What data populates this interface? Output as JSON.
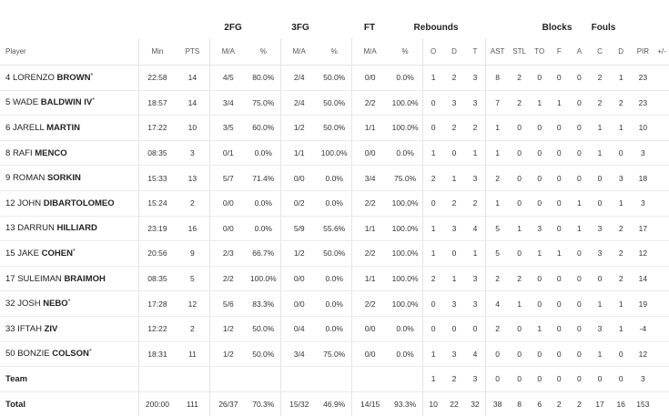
{
  "group_headers": {
    "fg2": "2FG",
    "fg3": "3FG",
    "ft": "FT",
    "rebounds": "Rebounds",
    "blocks": "Blocks",
    "fouls": "Fouls"
  },
  "columns": [
    "Player",
    "Min",
    "PTS",
    "M/A",
    "%",
    "M/A",
    "%",
    "M/A",
    "%",
    "O",
    "D",
    "T",
    "AST",
    "STL",
    "TO",
    "F",
    "A",
    "C",
    "D",
    "PIR",
    "+/-"
  ],
  "players": [
    {
      "no": "4",
      "first": "LORENZO",
      "last": "BROWN",
      "mark": "*",
      "stats": [
        "22:58",
        "14",
        "4/5",
        "80.0%",
        "2/4",
        "50.0%",
        "0/0",
        "0.0%",
        "1",
        "2",
        "3",
        "8",
        "2",
        "0",
        "0",
        "0",
        "2",
        "1",
        "23",
        ""
      ]
    },
    {
      "no": "5",
      "first": "WADE",
      "last": "BALDWIN IV",
      "mark": "*",
      "stats": [
        "18:57",
        "14",
        "3/4",
        "75.0%",
        "2/4",
        "50.0%",
        "2/2",
        "100.0%",
        "0",
        "3",
        "3",
        "7",
        "2",
        "1",
        "1",
        "0",
        "2",
        "2",
        "23",
        ""
      ]
    },
    {
      "no": "6",
      "first": "JARELL",
      "last": "MARTIN",
      "mark": "",
      "stats": [
        "17:22",
        "10",
        "3/5",
        "60.0%",
        "1/2",
        "50.0%",
        "1/1",
        "100.0%",
        "0",
        "2",
        "2",
        "1",
        "0",
        "0",
        "0",
        "0",
        "1",
        "1",
        "10",
        ""
      ]
    },
    {
      "no": "8",
      "first": "RAFI",
      "last": "MENCO",
      "mark": "",
      "stats": [
        "08:35",
        "3",
        "0/1",
        "0.0%",
        "1/1",
        "100.0%",
        "0/0",
        "0.0%",
        "1",
        "0",
        "1",
        "1",
        "0",
        "0",
        "0",
        "0",
        "1",
        "0",
        "3",
        ""
      ]
    },
    {
      "no": "9",
      "first": "ROMAN",
      "last": "SORKIN",
      "mark": "",
      "stats": [
        "15:33",
        "13",
        "5/7",
        "71.4%",
        "0/0",
        "0.0%",
        "3/4",
        "75.0%",
        "2",
        "1",
        "3",
        "2",
        "0",
        "0",
        "0",
        "0",
        "0",
        "3",
        "18",
        ""
      ]
    },
    {
      "no": "12",
      "first": "JOHN",
      "last": "DIBARTOLOMEO",
      "mark": "",
      "stats": [
        "15:24",
        "2",
        "0/0",
        "0.0%",
        "0/2",
        "0.0%",
        "2/2",
        "100.0%",
        "0",
        "2",
        "2",
        "1",
        "0",
        "0",
        "0",
        "1",
        "0",
        "1",
        "3",
        ""
      ]
    },
    {
      "no": "13",
      "first": "DARRUN",
      "last": "HILLIARD",
      "mark": "",
      "stats": [
        "23:19",
        "16",
        "0/0",
        "0.0%",
        "5/9",
        "55.6%",
        "1/1",
        "100.0%",
        "1",
        "3",
        "4",
        "5",
        "1",
        "3",
        "0",
        "1",
        "3",
        "2",
        "17",
        ""
      ]
    },
    {
      "no": "15",
      "first": "JAKE",
      "last": "COHEN",
      "mark": "*",
      "stats": [
        "20:56",
        "9",
        "2/3",
        "66.7%",
        "1/2",
        "50.0%",
        "2/2",
        "100.0%",
        "1",
        "0",
        "1",
        "5",
        "0",
        "1",
        "1",
        "0",
        "3",
        "2",
        "12",
        ""
      ]
    },
    {
      "no": "17",
      "first": "SULEIMAN",
      "last": "BRAIMOH",
      "mark": "",
      "stats": [
        "08:35",
        "5",
        "2/2",
        "100.0%",
        "0/0",
        "0.0%",
        "1/1",
        "100.0%",
        "2",
        "1",
        "3",
        "2",
        "2",
        "0",
        "0",
        "0",
        "0",
        "2",
        "14",
        ""
      ]
    },
    {
      "no": "32",
      "first": "JOSH",
      "last": "NEBO",
      "mark": "*",
      "stats": [
        "17:28",
        "12",
        "5/6",
        "83.3%",
        "0/0",
        "0.0%",
        "2/2",
        "100.0%",
        "0",
        "3",
        "3",
        "4",
        "1",
        "0",
        "0",
        "0",
        "1",
        "1",
        "19",
        ""
      ]
    },
    {
      "no": "33",
      "first": "IFTAH",
      "last": "ZIV",
      "mark": "",
      "stats": [
        "12:22",
        "2",
        "1/2",
        "50.0%",
        "0/4",
        "0.0%",
        "0/0",
        "0.0%",
        "0",
        "0",
        "0",
        "2",
        "0",
        "1",
        "0",
        "0",
        "3",
        "1",
        "-4",
        ""
      ]
    },
    {
      "no": "50",
      "first": "BONZIE",
      "last": "COLSON",
      "mark": "*",
      "stats": [
        "18:31",
        "11",
        "1/2",
        "50.0%",
        "3/4",
        "75.0%",
        "0/0",
        "0.0%",
        "1",
        "3",
        "4",
        "0",
        "0",
        "0",
        "0",
        "0",
        "1",
        "0",
        "12",
        ""
      ]
    }
  ],
  "team": {
    "label": "Team",
    "stats": [
      "",
      "",
      "",
      "",
      "",
      "",
      "",
      "",
      "1",
      "2",
      "3",
      "0",
      "0",
      "0",
      "0",
      "0",
      "0",
      "0",
      "3",
      ""
    ]
  },
  "total": {
    "label": "Total",
    "stats": [
      "200:00",
      "111",
      "26/37",
      "70.3%",
      "15/32",
      "46.9%",
      "14/15",
      "93.3%",
      "10",
      "22",
      "32",
      "38",
      "8",
      "6",
      "2",
      "2",
      "17",
      "16",
      "153",
      ""
    ]
  }
}
